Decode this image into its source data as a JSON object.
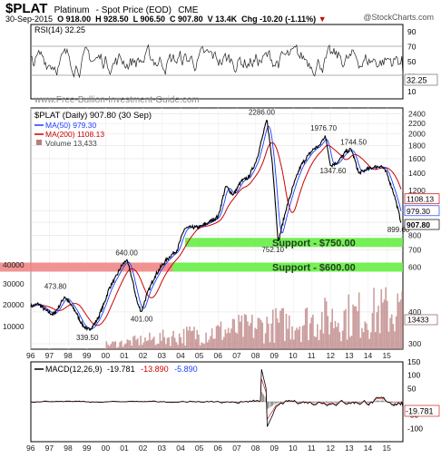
{
  "header": {
    "symbol": "$PLAT",
    "name": "Platinum",
    "description": "- Spot Price (EOD)",
    "exchange": "CME",
    "date": "30-Sep-2015",
    "open": "O 918.00",
    "high": "H 928.50",
    "low": "L 906.50",
    "close": "C 907.80",
    "volume": "V 13.4K",
    "change": "Chg -10.20 (-1.11%)",
    "change_arrow": "▼",
    "brand": "@StockCharts.com"
  },
  "watermark": "www.Free-Bullion-Investment-Guide.com",
  "colors": {
    "price_line": "#000000",
    "ma50": "#1a3cff",
    "ma200": "#cc0000",
    "volume": "#b97d7d",
    "support_green": "#66ee44",
    "support_red": "#f08080"
  },
  "chart_data": [
    {
      "type": "line",
      "panel": "RSI",
      "legend": "RSI(14) 32.25",
      "current_value": 32.25,
      "ylim": [
        0,
        100
      ],
      "y_ticks": [
        10,
        30,
        50,
        70,
        90
      ],
      "reference_lines": [
        30,
        70
      ],
      "series": [
        {
          "name": "RSI(14)",
          "values": []
        }
      ]
    },
    {
      "type": "line",
      "panel": "Price",
      "title": "$PLAT (Daily) 907.80 (30 Sep)",
      "x_ticks": [
        "96",
        "97",
        "98",
        "99",
        "00",
        "01",
        "02",
        "03",
        "04",
        "05",
        "06",
        "07",
        "08",
        "09",
        "10",
        "11",
        "12",
        "13",
        "14",
        "15"
      ],
      "y_ticks": [
        300,
        400,
        600,
        700,
        800,
        900,
        1000,
        1200,
        1400,
        1600,
        1800,
        2000,
        2200,
        2400
      ],
      "ylim": [
        300,
        2450
      ],
      "series": [
        {
          "name": "$PLAT",
          "x": [
            1996.0,
            1996.4,
            1996.8,
            1997.2,
            1997.5,
            1997.8,
            1998.1,
            1998.4,
            1998.7,
            1999.0,
            1999.3,
            1999.6,
            1999.9,
            2000.2,
            2000.5,
            2000.8,
            2001.1,
            2001.3,
            2001.7,
            2001.9,
            2002.2,
            2002.6,
            2003.0,
            2003.4,
            2003.8,
            2004.2,
            2004.6,
            2005.0,
            2005.5,
            2006.0,
            2006.4,
            2006.8,
            2007.2,
            2007.6,
            2008.0,
            2008.2,
            2008.4,
            2008.6,
            2008.9,
            2009.2,
            2009.6,
            2010.0,
            2010.4,
            2010.8,
            2011.1,
            2011.4,
            2011.7,
            2012.0,
            2012.4,
            2012.8,
            2013.1,
            2013.5,
            2013.9,
            2014.3,
            2014.7,
            2015.0,
            2015.4,
            2015.75
          ],
          "values": [
            420,
            430,
            405,
            390,
            420,
            460,
            430,
            400,
            360,
            340,
            350,
            380,
            430,
            500,
            540,
            600,
            640,
            580,
            430,
            401,
            470,
            550,
            610,
            660,
            700,
            850,
            860,
            860,
            900,
            950,
            1250,
            1150,
            1300,
            1350,
            1550,
            1750,
            2000,
            2286,
            1500,
            752,
            1000,
            1250,
            1500,
            1650,
            1750,
            1800,
            1976,
            1500,
            1560,
            1700,
            1744,
            1400,
            1450,
            1480,
            1500,
            1400,
            1150,
            899.6
          ]
        },
        {
          "name": "MA(50) 979.30",
          "values": []
        },
        {
          "name": "MA(200) 1108.13",
          "values": []
        },
        {
          "name": "Volume 13,433",
          "values": []
        }
      ],
      "annotations": [
        {
          "label": "2286.00",
          "x": 2008.2,
          "y": 2286
        },
        {
          "label": "1976.70",
          "x": 2011.5,
          "y": 1976.7
        },
        {
          "label": "1744.50",
          "x": 2013.1,
          "y": 1744.5
        },
        {
          "label": "1347.60",
          "x": 2012.0,
          "y": 1347.6
        },
        {
          "label": "752.10",
          "x": 2008.9,
          "y": 752.1
        },
        {
          "label": "899.60",
          "x": 2015.8,
          "y": 899.6
        },
        {
          "label": "640.00",
          "x": 2001.1,
          "y": 640
        },
        {
          "label": "473.80",
          "x": 1997.3,
          "y": 473.8
        },
        {
          "label": "401.00",
          "x": 2001.9,
          "y": 401
        },
        {
          "label": "339.50",
          "x": 1999.0,
          "y": 339.5
        }
      ],
      "support_levels": [
        {
          "label": "Support - $750.00",
          "value": 750
        },
        {
          "label": "Support - $600.00",
          "value": 600
        }
      ],
      "right_labels": [
        "1108.13",
        "979.30",
        "907.80"
      ],
      "volume_axis": {
        "ticks": [
          "10000",
          "20000",
          "30000",
          "40000"
        ],
        "current": "13433"
      }
    },
    {
      "type": "line",
      "panel": "MACD",
      "legend": "MACD(12,26,9)",
      "values_text": [
        "-19.781",
        "-13.890",
        "-5.890"
      ],
      "current_value": -19.781,
      "ylim": [
        -150,
        150
      ],
      "y_ticks": [
        150,
        100,
        50,
        -50,
        -100
      ],
      "series": [
        {
          "name": "MACD",
          "values": []
        },
        {
          "name": "Signal",
          "values": []
        },
        {
          "name": "Histogram",
          "values": []
        }
      ]
    }
  ]
}
